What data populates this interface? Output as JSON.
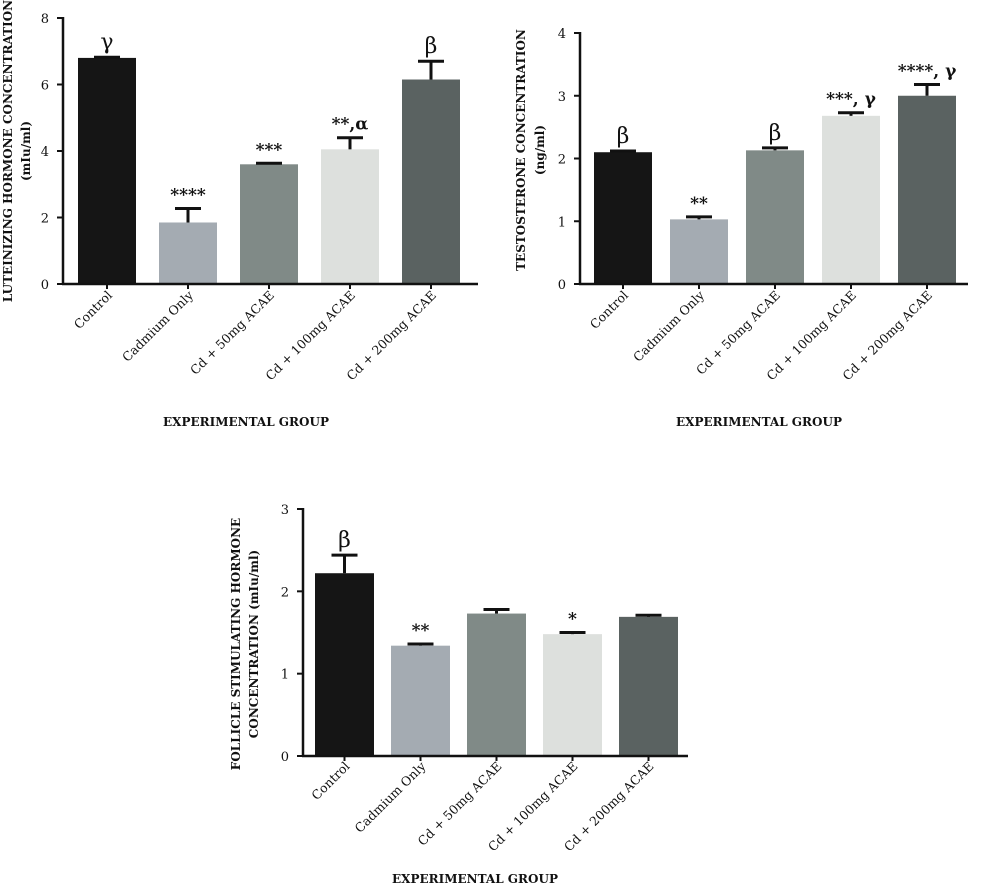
{
  "chart_data": [
    {
      "type": "bar",
      "ylabel_lines": [
        "LUTEINIZING HORMONE CONCENTRATION",
        "(mIu/ml)"
      ],
      "xlabel": "EXPERIMENTAL GROUP",
      "categories": [
        "Control",
        "Cadmium Only",
        "Cd + 50mg ACAE",
        "Cd + 100mg ACAE",
        "Cd + 200mg ACAE"
      ],
      "values": [
        6.8,
        1.85,
        3.6,
        4.05,
        6.15
      ],
      "errors": [
        0.02,
        0.42,
        0.03,
        0.35,
        0.55
      ],
      "annotations": [
        "γ",
        "****",
        "***",
        "**,α",
        "β"
      ],
      "ylim": [
        0,
        8
      ],
      "yticks": [
        0,
        2,
        4,
        6,
        8
      ],
      "colors": [
        "#151515",
        "#a4abb2",
        "#808a87",
        "#dde0dd",
        "#5a6261"
      ]
    },
    {
      "type": "bar",
      "ylabel_lines": [
        "TESTOSTERONE CONCENTRATION",
        "(ng/ml)"
      ],
      "xlabel": "EXPERIMENTAL GROUP",
      "categories": [
        "Control",
        "Cadmium Only",
        "Cd + 50mg ACAE",
        "Cd + 100mg ACAE",
        "Cd + 200mg ACAE"
      ],
      "values": [
        2.1,
        1.03,
        2.13,
        2.68,
        3.0
      ],
      "errors": [
        0.02,
        0.04,
        0.04,
        0.05,
        0.18
      ],
      "annotations": [
        "β",
        "**",
        "β",
        "***, γ",
        "****, γ"
      ],
      "ylim": [
        0,
        4
      ],
      "yticks": [
        0,
        1,
        2,
        3,
        4
      ],
      "colors": [
        "#151515",
        "#a4abb2",
        "#808a87",
        "#dde0dd",
        "#5a6261"
      ]
    },
    {
      "type": "bar",
      "ylabel_lines": [
        "FOLLICLE STIMULATING HORMONE",
        "CONCENTRATION (mIu/ml)"
      ],
      "xlabel": "EXPERIMENTAL GROUP",
      "categories": [
        "Control",
        "Cadmium Only",
        "Cd + 50mg ACAE",
        "Cd + 100mg ACAE",
        "Cd + 200mg ACAE"
      ],
      "values": [
        2.22,
        1.34,
        1.73,
        1.48,
        1.69
      ],
      "errors": [
        0.22,
        0.02,
        0.05,
        0.02,
        0.02
      ],
      "annotations": [
        "β",
        "**",
        "",
        "*",
        ""
      ],
      "ylim": [
        0,
        3
      ],
      "yticks": [
        0,
        1,
        2,
        3
      ],
      "colors": [
        "#151515",
        "#a4abb2",
        "#808a87",
        "#dde0dd",
        "#5a6261"
      ]
    }
  ]
}
